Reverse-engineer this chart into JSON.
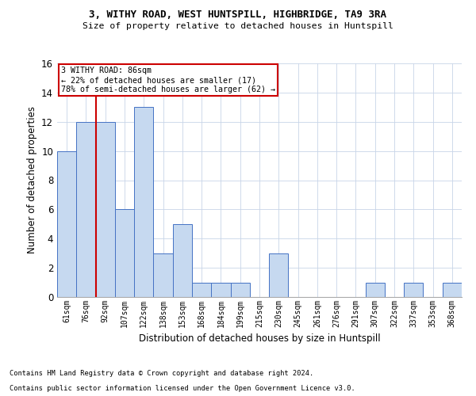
{
  "title1": "3, WITHY ROAD, WEST HUNTSPILL, HIGHBRIDGE, TA9 3RA",
  "title2": "Size of property relative to detached houses in Huntspill",
  "xlabel": "Distribution of detached houses by size in Huntspill",
  "ylabel": "Number of detached properties",
  "categories": [
    "61sqm",
    "76sqm",
    "92sqm",
    "107sqm",
    "122sqm",
    "138sqm",
    "153sqm",
    "168sqm",
    "184sqm",
    "199sqm",
    "215sqm",
    "230sqm",
    "245sqm",
    "261sqm",
    "276sqm",
    "291sqm",
    "307sqm",
    "322sqm",
    "337sqm",
    "353sqm",
    "368sqm"
  ],
  "values": [
    10,
    12,
    12,
    6,
    13,
    3,
    5,
    1,
    1,
    1,
    0,
    3,
    0,
    0,
    0,
    0,
    1,
    0,
    1,
    0,
    1
  ],
  "bar_color": "#c6d9f0",
  "bar_edge_color": "#4472c4",
  "vline_x": 1.5,
  "vline_color": "#cc0000",
  "annotation_line1": "3 WITHY ROAD: 86sqm",
  "annotation_line2": "← 22% of detached houses are smaller (17)",
  "annotation_line3": "78% of semi-detached houses are larger (62) →",
  "annotation_box_color": "#cc0000",
  "ylim": [
    0,
    16
  ],
  "yticks": [
    0,
    2,
    4,
    6,
    8,
    10,
    12,
    14,
    16
  ],
  "footer1": "Contains HM Land Registry data © Crown copyright and database right 2024.",
  "footer2": "Contains public sector information licensed under the Open Government Licence v3.0.",
  "bg_color": "#ffffff",
  "grid_color": "#c8d4e8"
}
